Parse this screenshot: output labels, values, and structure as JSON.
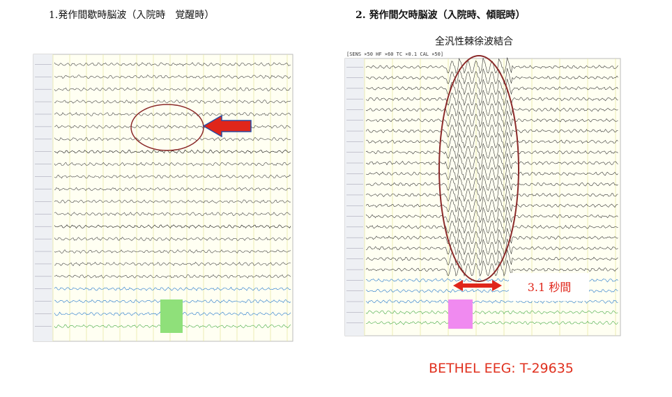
{
  "panels": [
    {
      "title": "1.発作間歇時脳波（入院時　覚醒時）"
    },
    {
      "title": "2. 発作間欠時脳波（入院時、傾眠時）",
      "subtitle": "全汎性棘徐波結合",
      "header": "[SENS ×50  HF ×60  TC ×0.1  CAL ×50]",
      "duration": "3.1 秒間"
    }
  ],
  "footer": "BETHEL EEG: T-29635"
}
